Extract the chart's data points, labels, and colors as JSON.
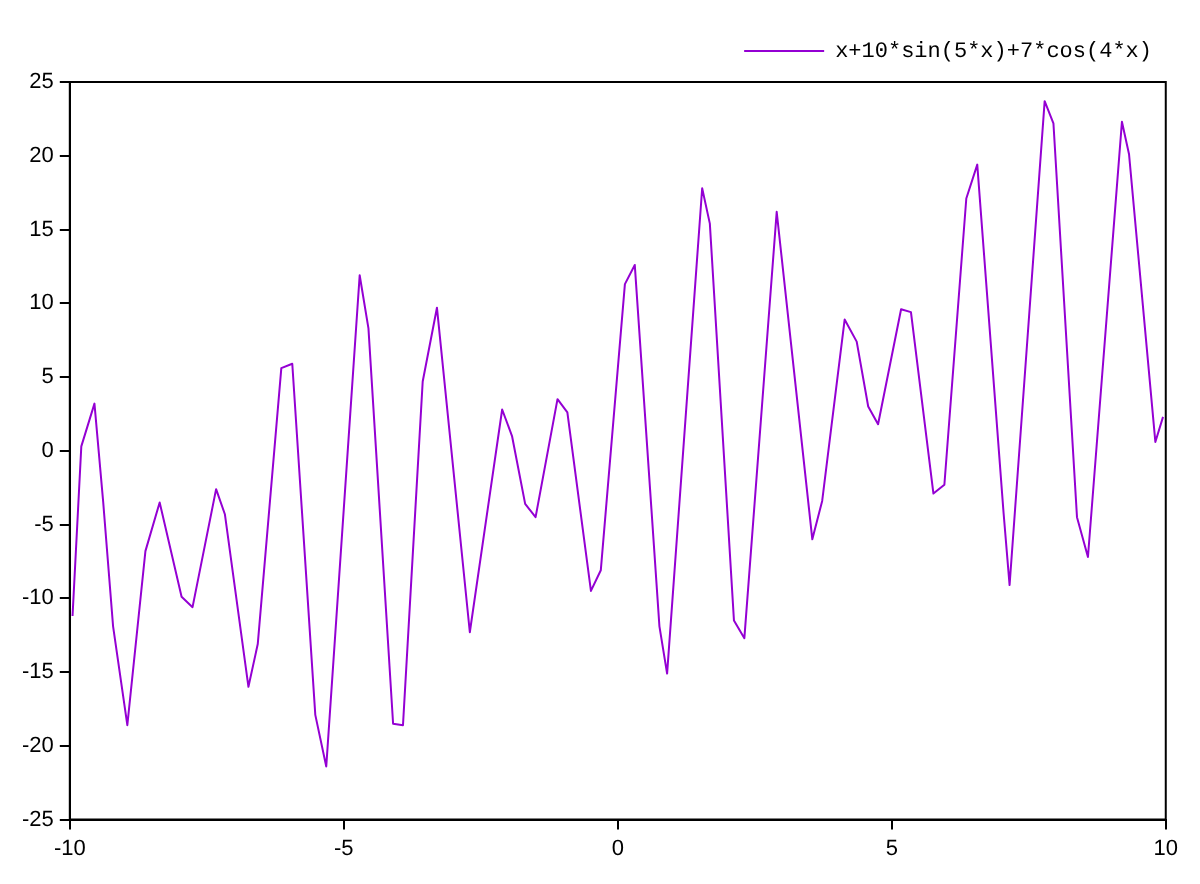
{
  "chart_data": {
    "type": "line",
    "x": [
      -9.95,
      -9.79,
      -9.55,
      -9.39,
      -9.21,
      -8.95,
      -8.62,
      -8.36,
      -7.96,
      -7.76,
      -7.33,
      -7.17,
      -6.74,
      -6.57,
      -6.14,
      -5.94,
      -5.52,
      -5.32,
      -4.71,
      -4.55,
      -4.1,
      -3.92,
      -3.56,
      -3.3,
      -2.7,
      -2.11,
      -1.93,
      -1.69,
      -1.5,
      -1.1,
      -0.92,
      -0.49,
      -0.31,
      0.13,
      0.31,
      0.76,
      0.9,
      1.54,
      1.68,
      2.12,
      2.31,
      2.9,
      3.55,
      3.73,
      4.14,
      4.36,
      4.57,
      4.75,
      5.17,
      5.35,
      5.76,
      5.96,
      6.36,
      6.56,
      7.04,
      7.15,
      7.79,
      7.95,
      8.38,
      8.58,
      9.2,
      9.33,
      9.81,
      9.95
    ],
    "series": [
      {
        "name": "x+10*sin(5*x)+7*cos(4*x)",
        "color": "#9400d3",
        "values": [
          -11.2,
          0.3,
          3.2,
          -3.5,
          -11.9,
          -18.6,
          -6.8,
          -3.5,
          -9.9,
          -10.6,
          -2.6,
          -4.3,
          -16.0,
          -13.1,
          5.6,
          5.9,
          -17.9,
          -21.4,
          11.9,
          8.3,
          -18.5,
          -18.6,
          4.7,
          9.7,
          -12.3,
          2.8,
          1.0,
          -3.6,
          -4.5,
          3.5,
          2.6,
          -9.5,
          -8.1,
          11.3,
          12.6,
          -11.9,
          -15.1,
          17.8,
          15.4,
          -11.5,
          -12.7,
          16.2,
          -6.0,
          -3.4,
          8.9,
          7.4,
          3.0,
          1.8,
          9.6,
          9.4,
          -2.9,
          -2.3,
          17.1,
          19.4,
          -4.2,
          -9.1,
          23.7,
          22.2,
          -4.5,
          -7.2,
          22.3,
          20.1,
          0.6,
          2.3
        ]
      }
    ],
    "xlim": [
      -10,
      10
    ],
    "xticks": [
      -10,
      -5,
      0,
      5,
      10
    ],
    "ylim": [
      -25,
      25
    ],
    "yticks": [
      -25,
      -20,
      -15,
      -10,
      -5,
      0,
      5,
      10,
      15,
      20,
      25
    ],
    "legend": "top right"
  }
}
